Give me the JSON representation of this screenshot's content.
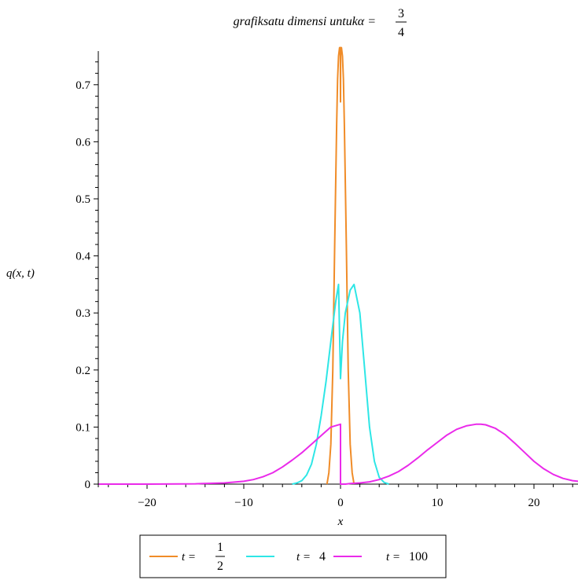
{
  "chart_data": {
    "type": "line",
    "title": {
      "text": "grafiksatu dimensi untukα =",
      "frac_num": "3",
      "frac_den": "4"
    },
    "xlabel": "x",
    "ylabel": "q(x, t)",
    "xlim": [
      -25,
      25
    ],
    "ylim": [
      0,
      0.76
    ],
    "x_ticks": [
      -20,
      -10,
      0,
      10,
      20
    ],
    "x_tick_labels": [
      "−20",
      "−10",
      "0",
      "10",
      "20"
    ],
    "y_ticks": [
      0,
      0.1,
      0.2,
      0.3,
      0.4,
      0.5,
      0.6,
      0.7
    ],
    "y_tick_labels": [
      "0",
      "0.1",
      "0.2",
      "0.3",
      "0.4",
      "0.5",
      "0.6",
      "0.7"
    ],
    "grid": false,
    "legend_position": "bottom",
    "series": [
      {
        "name": "t = 1/2",
        "legend_var": "t =",
        "legend_num": "1",
        "legend_den": "2",
        "color": "#f08c28",
        "x": [
          -1.4,
          -1.2,
          -1.0,
          -0.8,
          -0.6,
          -0.4,
          -0.3,
          -0.2,
          -0.1,
          -0.02,
          0.0,
          0.02,
          0.1,
          0.2,
          0.3,
          0.4,
          0.6,
          0.8,
          1.0,
          1.2,
          1.4
        ],
        "y": [
          0.0,
          0.02,
          0.07,
          0.2,
          0.42,
          0.63,
          0.71,
          0.75,
          0.765,
          0.765,
          0.67,
          0.765,
          0.765,
          0.75,
          0.71,
          0.63,
          0.42,
          0.2,
          0.07,
          0.02,
          0.0
        ]
      },
      {
        "name": "t = 4",
        "legend_var": "t =",
        "legend_num": "4",
        "color": "#2ee6e6",
        "x": [
          -5.0,
          -4.5,
          -4.0,
          -3.5,
          -3.0,
          -2.5,
          -2.0,
          -1.5,
          -1.0,
          -0.5,
          -0.2,
          0.0,
          0.2,
          0.5,
          1.0,
          1.4,
          2.0,
          2.5,
          3.0,
          3.5,
          4.0,
          4.5,
          5.0
        ],
        "y": [
          0.0,
          0.002,
          0.006,
          0.016,
          0.035,
          0.07,
          0.12,
          0.18,
          0.25,
          0.32,
          0.35,
          0.185,
          0.25,
          0.3,
          0.34,
          0.35,
          0.3,
          0.2,
          0.1,
          0.04,
          0.012,
          0.003,
          0.0
        ],
        "breaks_before": []
      },
      {
        "name": "t = 100",
        "legend_var": "t =",
        "legend_num": "100",
        "color": "#ea2aea",
        "x": [
          -25,
          -20,
          -15,
          -12,
          -10,
          -9,
          -8,
          -7,
          -6,
          -5,
          -4,
          -3,
          -2,
          -1,
          0,
          0,
          0.5,
          1,
          2,
          3,
          4,
          5,
          6,
          7,
          8,
          9,
          10,
          11,
          12,
          13,
          14,
          14.5,
          15,
          16,
          17,
          18,
          19,
          20,
          21,
          22,
          23,
          24,
          25
        ],
        "y": [
          0.0,
          0.0,
          0.0005,
          0.002,
          0.005,
          0.008,
          0.013,
          0.02,
          0.03,
          0.042,
          0.055,
          0.07,
          0.085,
          0.1,
          0.105,
          0.0,
          0.0,
          0.001,
          0.002,
          0.004,
          0.008,
          0.014,
          0.022,
          0.033,
          0.046,
          0.06,
          0.073,
          0.086,
          0.096,
          0.102,
          0.105,
          0.105,
          0.104,
          0.098,
          0.087,
          0.072,
          0.056,
          0.04,
          0.027,
          0.017,
          0.01,
          0.006,
          0.004
        ],
        "breaks_before": [
          15
        ]
      }
    ]
  }
}
